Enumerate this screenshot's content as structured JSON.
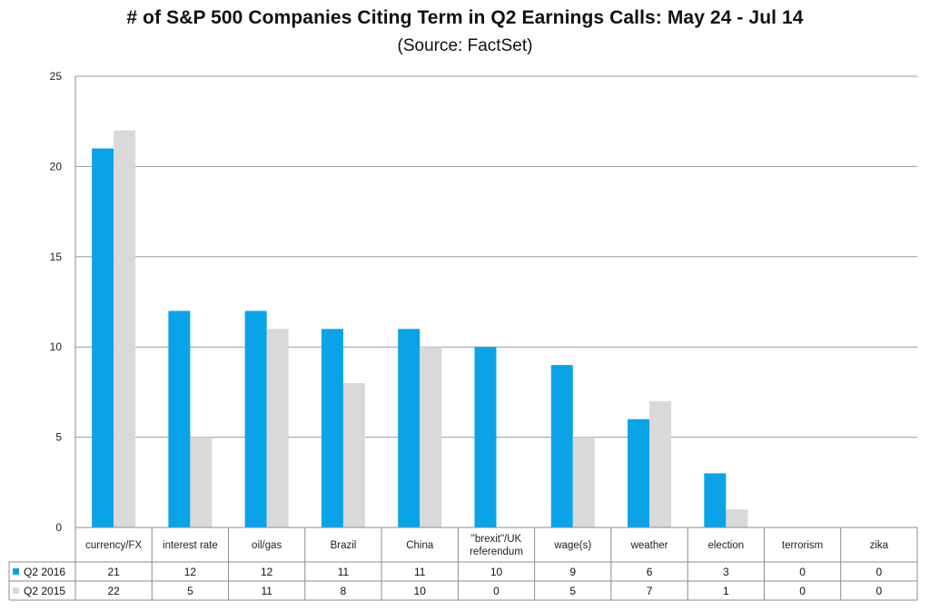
{
  "chart_data": {
    "type": "bar",
    "title": "# of S&P 500 Companies Citing Term in Q2 Earnings Calls: May 24 - Jul 14",
    "subtitle": "(Source: FactSet)",
    "categories": [
      "currency/FX",
      "interest rate",
      "oil/gas",
      "Brazil",
      "China",
      "\"brexit\"/UK referendum",
      "wage(s)",
      "weather",
      "election",
      "terrorism",
      "zika"
    ],
    "series": [
      {
        "name": "Q2 2016",
        "values": [
          21,
          12,
          12,
          11,
          11,
          10,
          9,
          6,
          3,
          0,
          0
        ],
        "color": "#0aa3e8"
      },
      {
        "name": "Q2 2015",
        "values": [
          22,
          5,
          11,
          8,
          10,
          0,
          5,
          7,
          1,
          0,
          0
        ],
        "color": "#d9d9d9"
      }
    ],
    "ylim": [
      0,
      25
    ],
    "yticks": [
      0,
      5,
      10,
      15,
      20,
      25
    ],
    "grid": true,
    "legend": "data-table-left"
  }
}
